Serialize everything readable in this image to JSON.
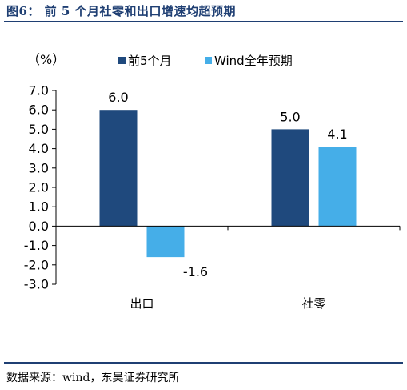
{
  "header": {
    "title": "图6：  前 5 个月社零和出口增速均超预期"
  },
  "footer": {
    "source": "数据来源：wind，东吴证券研究所"
  },
  "chart_data": {
    "type": "bar",
    "unit_label": "（%）",
    "categories": [
      "出口",
      "社零"
    ],
    "series": [
      {
        "name": "前5个月",
        "values": [
          6.0,
          5.0
        ],
        "color": "#1f497d"
      },
      {
        "name": "Wind全年预期",
        "values": [
          -1.6,
          4.1
        ],
        "color": "#45aee8"
      }
    ],
    "ylim": [
      -3.0,
      7.0
    ],
    "yticks": [
      "7.0",
      "6.0",
      "5.0",
      "4.0",
      "3.0",
      "2.0",
      "1.0",
      "0.0",
      "-1.0",
      "-2.0",
      "-3.0"
    ],
    "data_labels": [
      [
        "6.0",
        "5.0"
      ],
      [
        "-1.6",
        "4.1"
      ]
    ],
    "legend_position": "top",
    "grid": false
  }
}
